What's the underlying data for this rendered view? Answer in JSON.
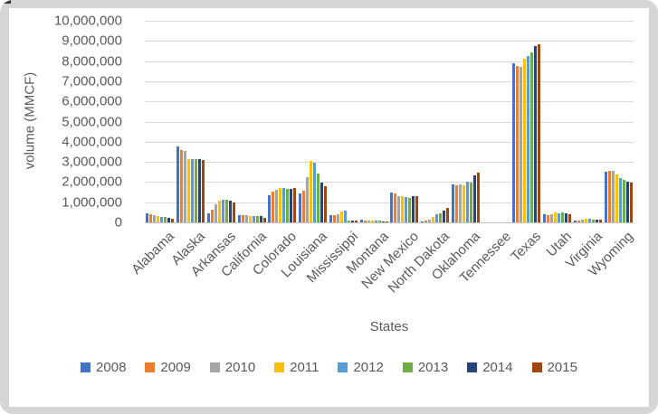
{
  "frame": {
    "border_color": "#d5d5d5",
    "background": "#ffffff"
  },
  "text_color": "#595959",
  "gridline_color": "#d9d9d9",
  "chart_data": {
    "type": "bar",
    "title": "",
    "ylabel": "volume (MMCF)",
    "xlabel": "States",
    "ylim": [
      0,
      10000000
    ],
    "ytick_step": 1000000,
    "ytick_labels": [
      "0",
      "1,000,000",
      "2,000,000",
      "3,000,000",
      "4,000,000",
      "5,000,000",
      "6,000,000",
      "7,000,000",
      "8,000,000",
      "9,000,000",
      "10,000,000"
    ],
    "grid": true,
    "legend_position": "bottom",
    "categories": [
      "Alabama",
      "Alaska",
      "Arkansas",
      "California",
      "Colorado",
      "Louisiana",
      "Mississippi",
      "Montana",
      "New Mexico",
      "North Dakota",
      "Oklahoma",
      "Tennessee",
      "Texas",
      "Utah",
      "Virginia",
      "Wyoming"
    ],
    "series": [
      {
        "name": "2008",
        "color": "#4472C4",
        "values": [
          440000,
          3750000,
          440000,
          370000,
          1360000,
          1440000,
          350000,
          130000,
          1470000,
          50000,
          1870000,
          5000,
          7900000,
          410000,
          110000,
          2500000
        ]
      },
      {
        "name": "2009",
        "color": "#ED7D31",
        "values": [
          400000,
          3580000,
          650000,
          350000,
          1540000,
          1590000,
          350000,
          110000,
          1440000,
          90000,
          1840000,
          5000,
          7750000,
          380000,
          110000,
          2560000
        ]
      },
      {
        "name": "2010",
        "color": "#A5A5A5",
        "values": [
          350000,
          3550000,
          900000,
          370000,
          1630000,
          2250000,
          420000,
          90000,
          1300000,
          150000,
          1870000,
          5000,
          7700000,
          410000,
          150000,
          2560000
        ]
      },
      {
        "name": "2011",
        "color": "#FFC000",
        "values": [
          300000,
          3120000,
          1070000,
          330000,
          1700000,
          3040000,
          520000,
          80000,
          1280000,
          270000,
          1850000,
          5000,
          8100000,
          500000,
          160000,
          2370000
        ]
      },
      {
        "name": "2012",
        "color": "#5B9BD5",
        "values": [
          280000,
          3150000,
          1130000,
          320000,
          1720000,
          2960000,
          570000,
          70000,
          1250000,
          400000,
          2030000,
          5000,
          8250000,
          450000,
          160000,
          2190000
        ]
      },
      {
        "name": "2013",
        "color": "#70AD47",
        "values": [
          260000,
          3150000,
          1130000,
          320000,
          1640000,
          2400000,
          90000,
          70000,
          1230000,
          470000,
          1970000,
          5000,
          8450000,
          500000,
          150000,
          2100000
        ]
      },
      {
        "name": "2014",
        "color": "#264478",
        "values": [
          230000,
          3140000,
          1060000,
          300000,
          1660000,
          1970000,
          80000,
          60000,
          1300000,
          590000,
          2330000,
          5000,
          8750000,
          450000,
          140000,
          2000000
        ]
      },
      {
        "name": "2015",
        "color": "#9E480E",
        "values": [
          180000,
          3100000,
          1000000,
          210000,
          1710000,
          1780000,
          70000,
          60000,
          1300000,
          700000,
          2480000,
          5000,
          8850000,
          410000,
          120000,
          1960000
        ]
      }
    ]
  }
}
